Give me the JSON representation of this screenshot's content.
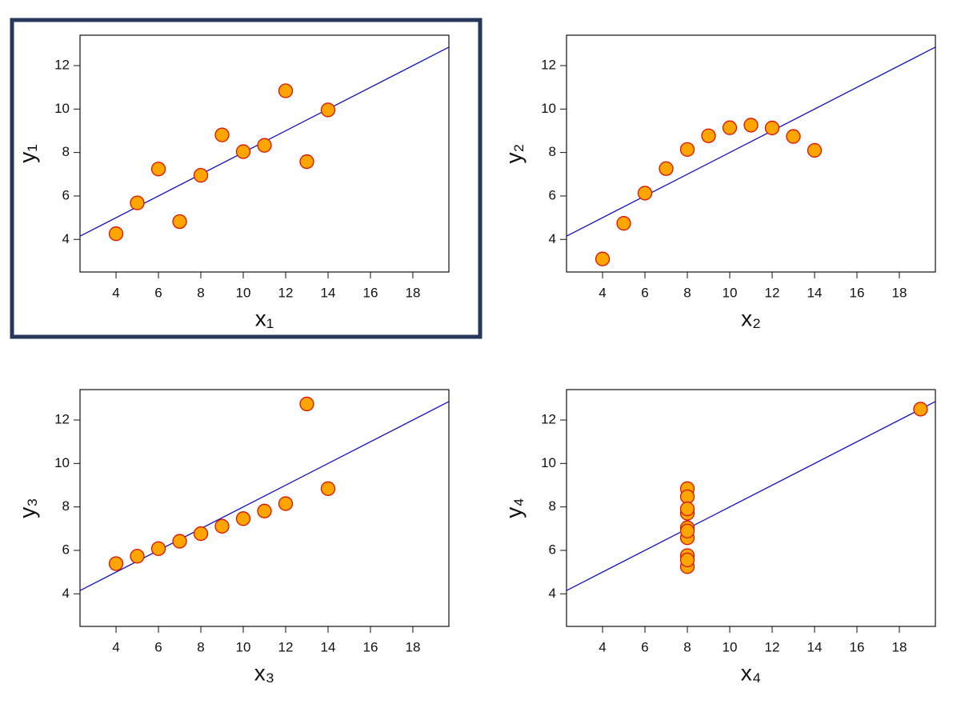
{
  "chart_data": [
    {
      "type": "scatter",
      "xlabel": "x₁",
      "ylabel": "y₁",
      "x": [
        10,
        8,
        13,
        9,
        11,
        14,
        6,
        4,
        12,
        7,
        5
      ],
      "values": [
        8.04,
        6.95,
        7.58,
        8.81,
        8.33,
        9.96,
        7.24,
        4.26,
        10.84,
        4.82,
        5.68
      ],
      "color": "#ffa500",
      "edge_color": "#dd1100",
      "fit": {
        "intercept": 3,
        "slope": 0.5,
        "color": "#1010c0"
      },
      "xlim": [
        2.3,
        19.7
      ],
      "ylim": [
        2.5,
        13.4
      ],
      "xticks": [
        4,
        6,
        8,
        10,
        12,
        14,
        16,
        18
      ],
      "yticks": [
        4,
        6,
        8,
        10,
        12
      ]
    },
    {
      "type": "scatter",
      "xlabel": "x₂",
      "ylabel": "y₂",
      "x": [
        10,
        8,
        13,
        9,
        11,
        14,
        6,
        4,
        12,
        7,
        5
      ],
      "values": [
        9.14,
        8.14,
        8.74,
        8.77,
        9.26,
        8.1,
        6.13,
        3.1,
        9.13,
        7.26,
        4.74
      ],
      "color": "#ffa500",
      "edge_color": "#dd1100",
      "fit": {
        "intercept": 3,
        "slope": 0.5,
        "color": "#1010c0"
      },
      "xlim": [
        2.3,
        19.7
      ],
      "ylim": [
        2.5,
        13.4
      ],
      "xticks": [
        4,
        6,
        8,
        10,
        12,
        14,
        16,
        18
      ],
      "yticks": [
        4,
        6,
        8,
        10,
        12
      ]
    },
    {
      "type": "scatter",
      "xlabel": "x₃",
      "ylabel": "y₃",
      "x": [
        10,
        8,
        13,
        9,
        11,
        14,
        6,
        4,
        12,
        7,
        5
      ],
      "values": [
        7.46,
        6.77,
        12.74,
        7.11,
        7.81,
        8.84,
        6.08,
        5.39,
        8.15,
        6.42,
        5.73
      ],
      "color": "#ffa500",
      "edge_color": "#dd1100",
      "fit": {
        "intercept": 3,
        "slope": 0.5,
        "color": "#1010c0"
      },
      "xlim": [
        2.3,
        19.7
      ],
      "ylim": [
        2.5,
        13.4
      ],
      "xticks": [
        4,
        6,
        8,
        10,
        12,
        14,
        16,
        18
      ],
      "yticks": [
        4,
        6,
        8,
        10,
        12
      ]
    },
    {
      "type": "scatter",
      "xlabel": "x₄",
      "ylabel": "y₄",
      "x": [
        8,
        8,
        8,
        8,
        8,
        8,
        8,
        19,
        8,
        8,
        8
      ],
      "values": [
        6.58,
        5.76,
        7.71,
        8.84,
        8.47,
        7.04,
        5.25,
        12.5,
        5.56,
        7.91,
        6.89
      ],
      "color": "#ffa500",
      "edge_color": "#dd1100",
      "fit": {
        "intercept": 3,
        "slope": 0.5,
        "color": "#1010c0"
      },
      "xlim": [
        2.3,
        19.7
      ],
      "ylim": [
        2.5,
        13.4
      ],
      "xticks": [
        4,
        6,
        8,
        10,
        12,
        14,
        16,
        18
      ],
      "yticks": [
        4,
        6,
        8,
        10,
        12
      ]
    }
  ]
}
